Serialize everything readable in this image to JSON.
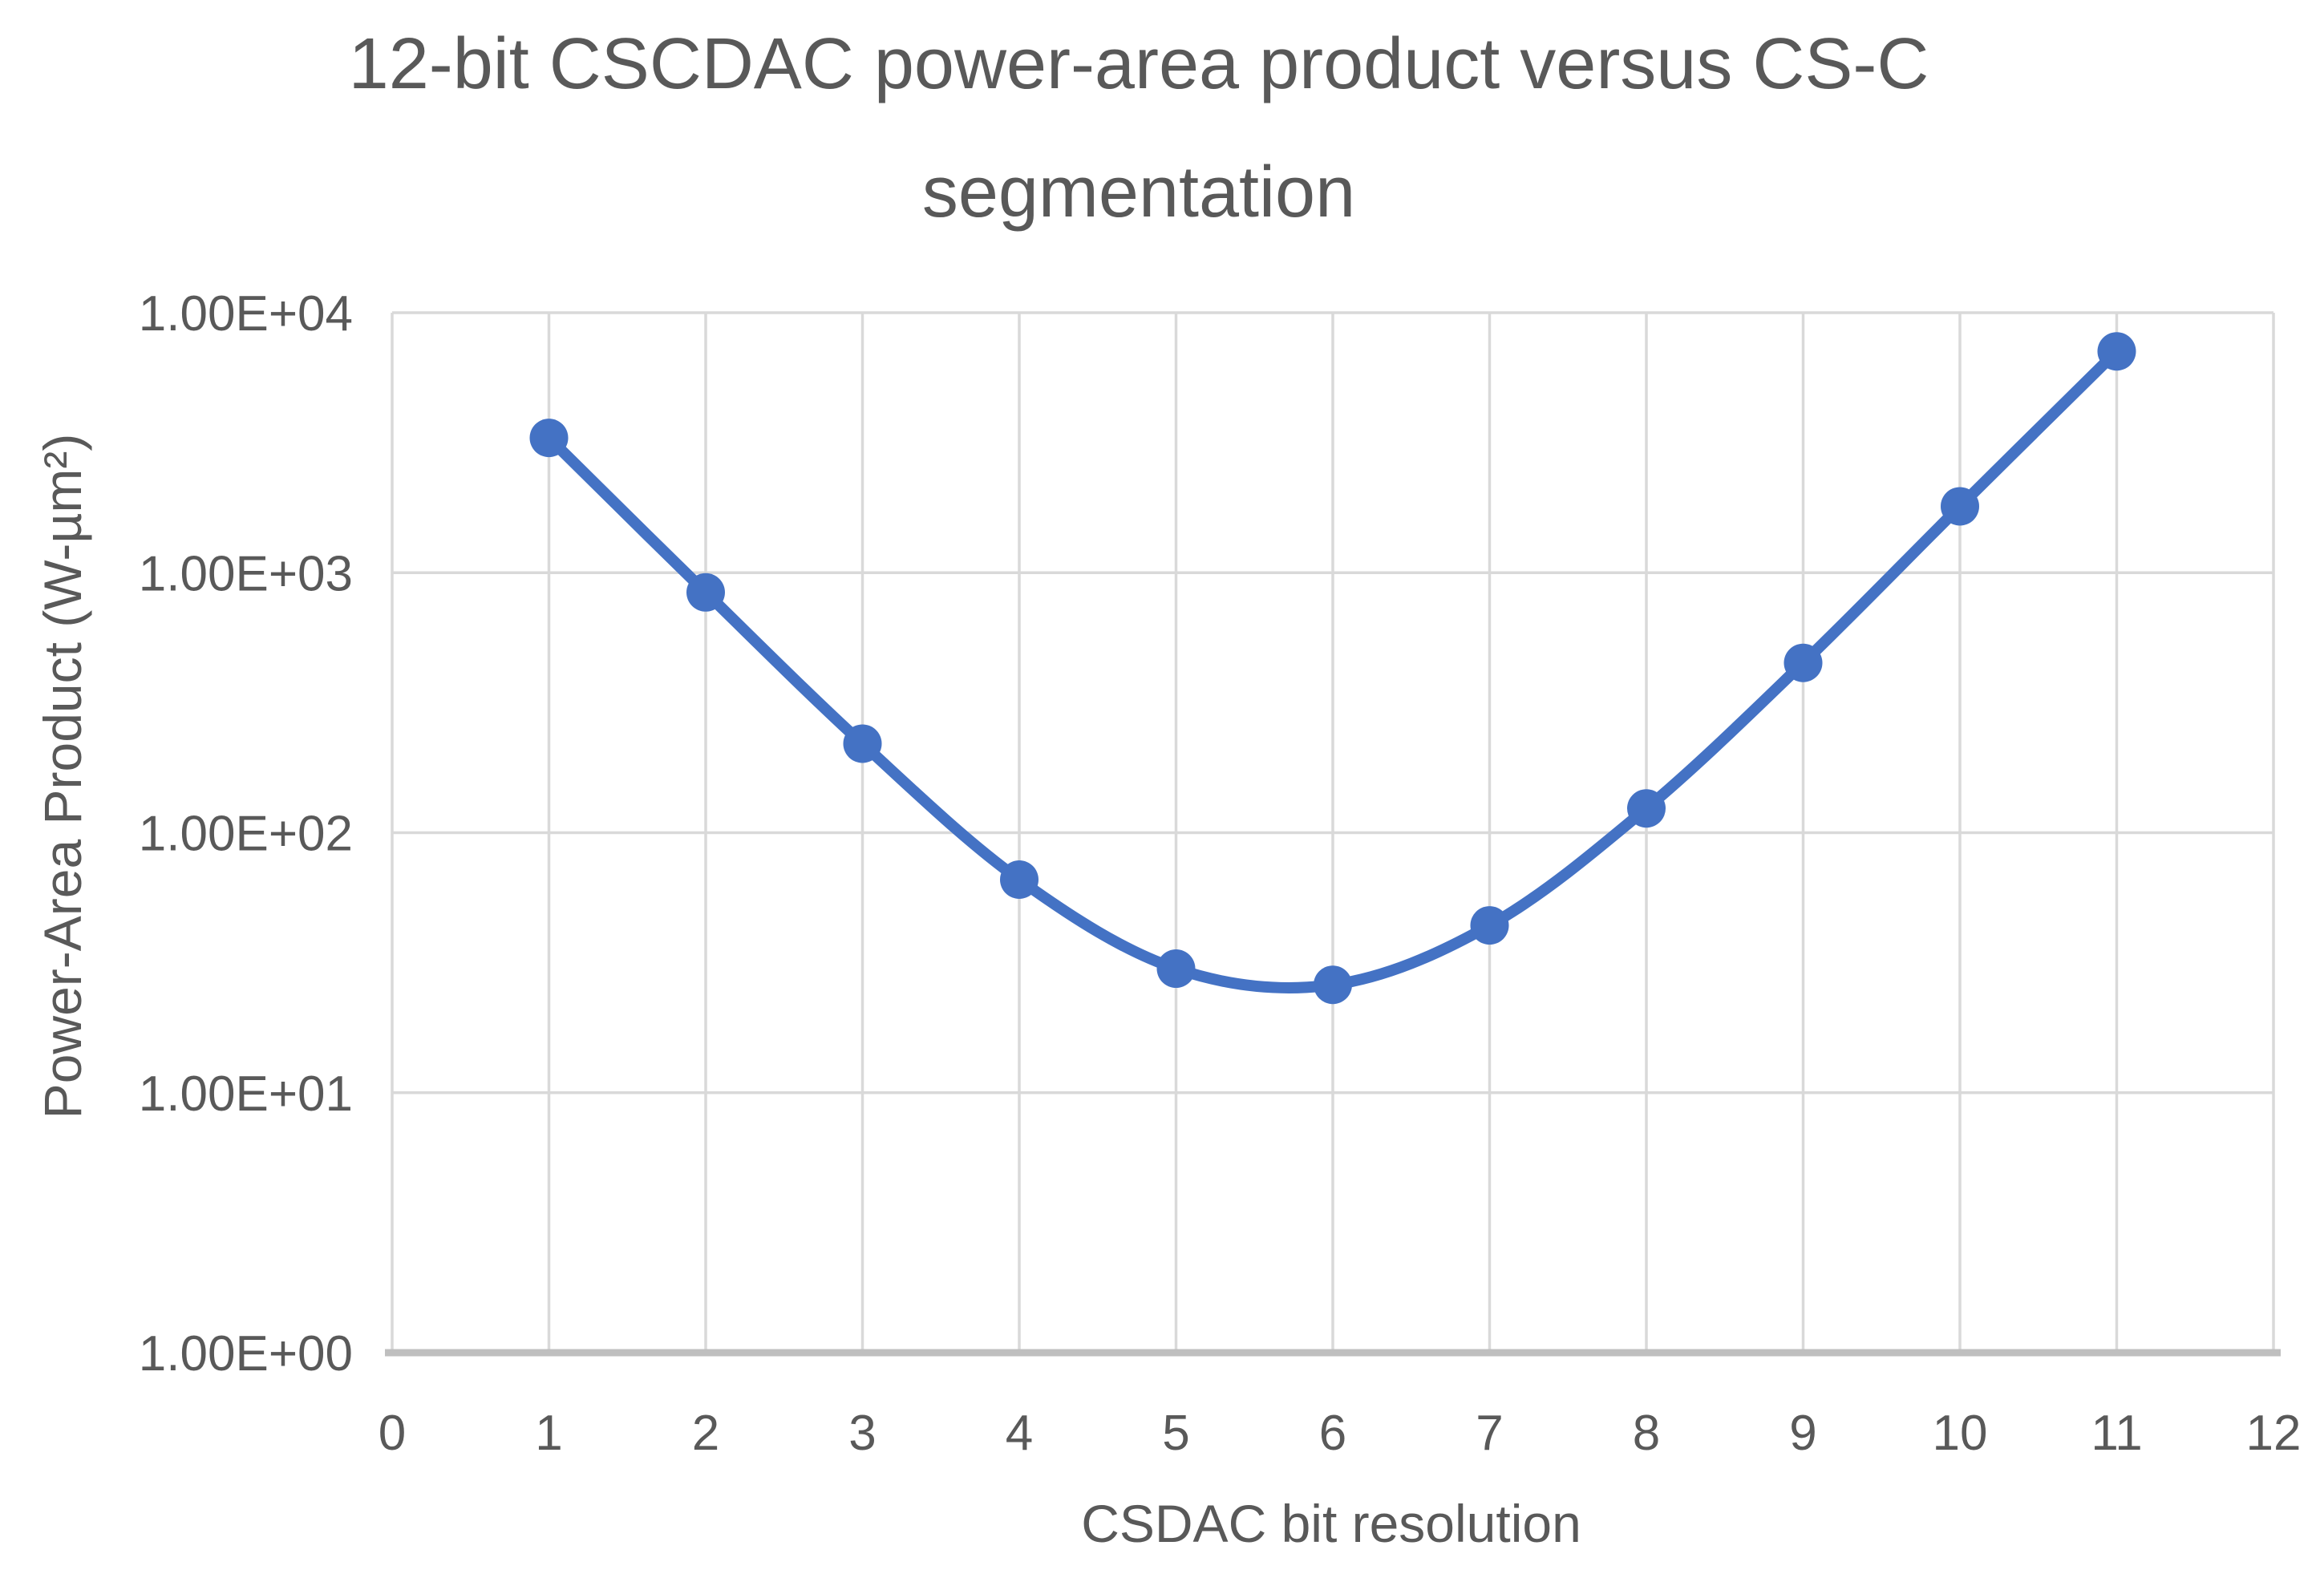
{
  "page": {
    "background": "#FFFFFF"
  },
  "chart_data": {
    "type": "line",
    "title": "12-bit CSCDAC power-area product versus CS-C segmentation",
    "xlabel": "CSDAC bit resolution",
    "ylabel": "Power-Area Product (W-µm²)",
    "x": [
      1,
      2,
      3,
      4,
      5,
      6,
      7,
      8,
      9,
      10,
      11
    ],
    "y": [
      3300,
      840,
      220,
      66,
      30,
      26,
      44,
      124,
      450,
      1800,
      7100
    ],
    "x_ticks": [
      0,
      1,
      2,
      3,
      4,
      5,
      6,
      7,
      8,
      9,
      10,
      11,
      12
    ],
    "xlim": [
      0,
      12
    ],
    "ylim": [
      1,
      10000
    ],
    "y_scale": "log10",
    "y_tick_labels": [
      "1.00E+00",
      "1.00E+01",
      "1.00E+02",
      "1.00E+03",
      "1.00E+04"
    ],
    "grid": true,
    "legend": "none",
    "smooth": true,
    "marker": "circle",
    "line_color": "#4472C4",
    "marker_color": "#4472C4",
    "text_color": "#595959",
    "gridline_color": "#D9D9D9",
    "axis_line_color": "#BFBFBF"
  }
}
